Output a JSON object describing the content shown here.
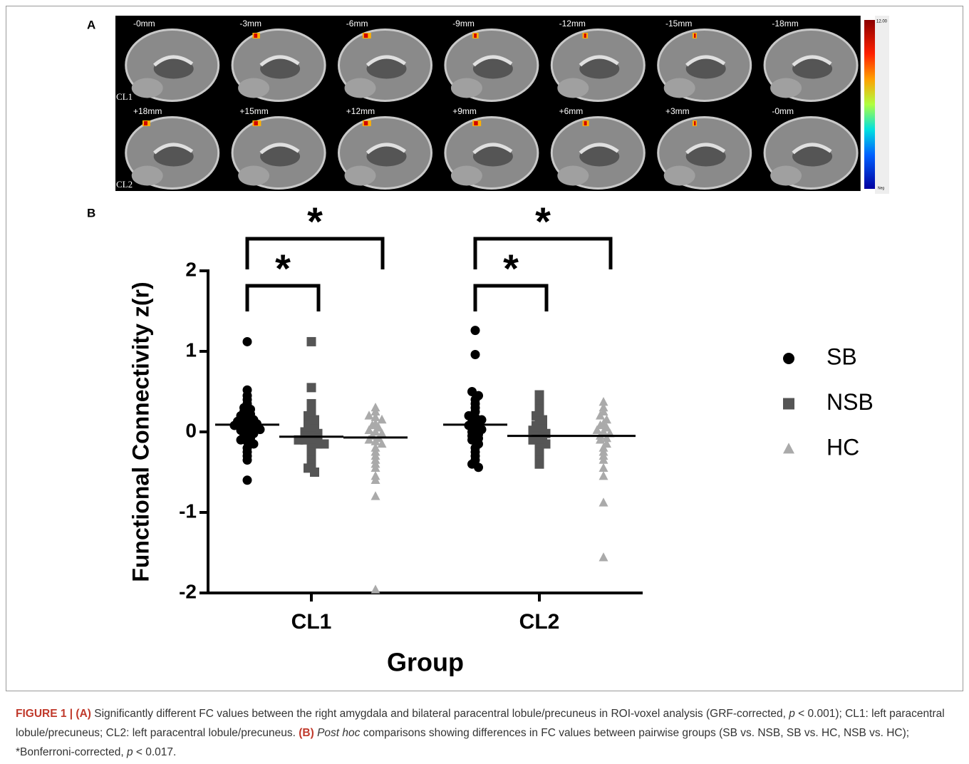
{
  "panel_a": {
    "label": "A",
    "rows": [
      {
        "name": "CL1",
        "slices": [
          "-0mm",
          "-3mm",
          "-6mm",
          "-9mm",
          "-12mm",
          "-15mm",
          "-18mm"
        ]
      },
      {
        "name": "CL2",
        "slices": [
          "+18mm",
          "+15mm",
          "+12mm",
          "+9mm",
          "+6mm",
          "+3mm",
          "-0mm"
        ]
      }
    ],
    "colorbar": {
      "max": "12.00",
      "min": "Neg"
    }
  },
  "panel_b_label": "B",
  "chart_data": {
    "type": "scatter",
    "ylabel": "Functional Connectivity z(r)",
    "xlabel": "Group",
    "categories": [
      "CL1",
      "CL2"
    ],
    "ylim": [
      -2,
      2
    ],
    "yticks": [
      -2,
      -1,
      0,
      1,
      2
    ],
    "legend": "right",
    "series": [
      {
        "name": "SB",
        "color": "#000000",
        "marker": "circle",
        "means": [
          0.09,
          0.09
        ],
        "points": [
          [
            1.12,
            0.52,
            0.45,
            0.4,
            0.35,
            0.3,
            0.28,
            0.25,
            0.22,
            0.2,
            0.18,
            0.15,
            0.13,
            0.12,
            0.1,
            0.1,
            0.08,
            0.07,
            0.05,
            0.05,
            0.03,
            0.02,
            0,
            -0.02,
            -0.05,
            -0.08,
            -0.1,
            -0.12,
            -0.15,
            -0.2,
            -0.25,
            -0.3,
            -0.35,
            -0.6
          ],
          [
            1.26,
            0.96,
            0.5,
            0.45,
            0.4,
            0.35,
            0.3,
            0.25,
            0.2,
            0.18,
            0.15,
            0.12,
            0.1,
            0.08,
            0.05,
            0.03,
            0,
            -0.03,
            -0.05,
            -0.08,
            -0.1,
            -0.15,
            -0.2,
            -0.25,
            -0.3,
            -0.35,
            -0.4,
            -0.44
          ]
        ]
      },
      {
        "name": "NSB",
        "color": "#555555",
        "marker": "square",
        "means": [
          -0.06,
          -0.05
        ],
        "points": [
          [
            1.12,
            0.55,
            0.35,
            0.3,
            0.25,
            0.2,
            0.15,
            0.12,
            0.1,
            0.05,
            0.03,
            0,
            0,
            -0.02,
            -0.05,
            -0.05,
            -0.08,
            -0.1,
            -0.1,
            -0.12,
            -0.15,
            -0.15,
            -0.2,
            -0.25,
            -0.3,
            -0.35,
            -0.4,
            -0.45,
            -0.5
          ],
          [
            0.46,
            0.4,
            0.35,
            0.3,
            0.25,
            0.2,
            0.15,
            0.1,
            0.08,
            0.05,
            0.02,
            0,
            -0.02,
            -0.05,
            -0.08,
            -0.1,
            -0.12,
            -0.15,
            -0.2,
            -0.25,
            -0.3,
            -0.35,
            -0.4
          ]
        ]
      },
      {
        "name": "HC",
        "color": "#aaaaaa",
        "marker": "triangle",
        "means": [
          -0.07,
          -0.05
        ],
        "points": [
          [
            0.3,
            0.25,
            0.2,
            0.18,
            0.15,
            0.1,
            0.08,
            0.05,
            0.02,
            0,
            -0.02,
            -0.05,
            -0.08,
            -0.1,
            -0.12,
            -0.15,
            -0.2,
            -0.25,
            -0.3,
            -0.35,
            -0.4,
            -0.45,
            -0.55,
            -0.6,
            -0.8,
            -1.96
          ],
          [
            0.37,
            0.3,
            0.25,
            0.2,
            0.15,
            0.1,
            0.08,
            0.05,
            0.02,
            0,
            -0.02,
            -0.05,
            -0.08,
            -0.1,
            -0.15,
            -0.2,
            -0.25,
            -0.3,
            -0.35,
            -0.45,
            -0.55,
            -0.88,
            -1.56
          ]
        ]
      }
    ],
    "comparisons": [
      {
        "category": 0,
        "from": 0,
        "to": 1,
        "label": "*"
      },
      {
        "category": 0,
        "from": 0,
        "to": 2,
        "label": "*"
      },
      {
        "category": 1,
        "from": 0,
        "to": 1,
        "label": "*"
      },
      {
        "category": 1,
        "from": 0,
        "to": 2,
        "label": "*"
      }
    ]
  },
  "caption": [
    {
      "text": "FIGURE 1 | (A)",
      "style": "bold"
    },
    {
      "text": " Significantly different FC values between the right amygdala and bilateral paracentral lobule/precuneus in ROI-voxel analysis (GRF-corrected, ",
      "style": "normal"
    },
    {
      "text": "p",
      "style": "italic"
    },
    {
      "text": " < 0.001); CL1: left paracentral lobule/precuneus; CL2: left paracentral lobule/precuneus. ",
      "style": "normal"
    },
    {
      "text": "(B)",
      "style": "bold"
    },
    {
      "text": " ",
      "style": "normal"
    },
    {
      "text": "Post hoc",
      "style": "italic"
    },
    {
      "text": " comparisons showing differences in FC values between pairwise groups (SB vs. NSB, SB vs. HC, NSB vs. HC); *Bonferroni-corrected, ",
      "style": "normal"
    },
    {
      "text": "p",
      "style": "italic"
    },
    {
      "text": " < 0.017.",
      "style": "normal"
    }
  ]
}
